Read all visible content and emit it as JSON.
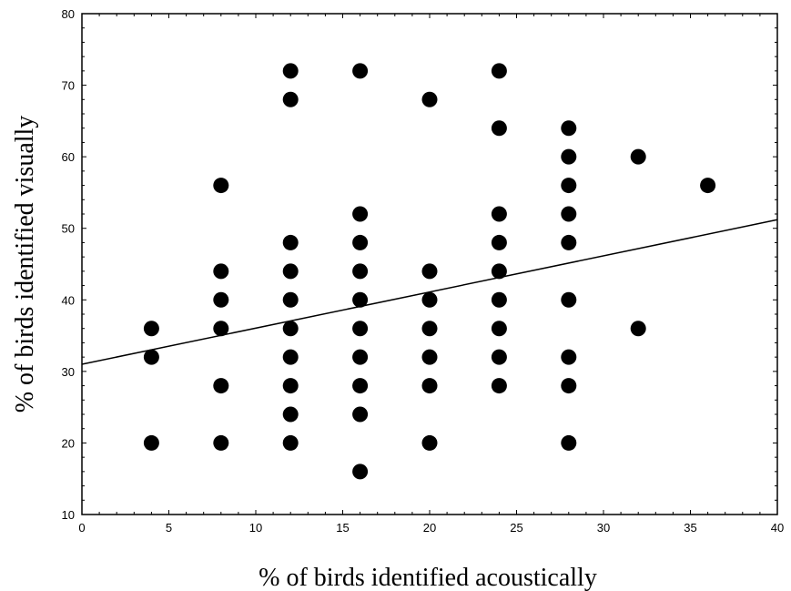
{
  "chart_data": {
    "type": "scatter",
    "xlabel": "% of birds identified acoustically",
    "ylabel": "% of birds identified  visually",
    "xlim": [
      0,
      40
    ],
    "ylim": [
      10,
      80
    ],
    "xticks": [
      0,
      5,
      10,
      15,
      20,
      25,
      30,
      35,
      40
    ],
    "yticks": [
      10,
      20,
      30,
      40,
      50,
      60,
      70,
      80
    ],
    "grid": false,
    "legend": "none",
    "marker_color": "#000000",
    "series": [
      {
        "points": [
          [
            4,
            36
          ],
          [
            4,
            32
          ],
          [
            4,
            20
          ],
          [
            8,
            56
          ],
          [
            8,
            44
          ],
          [
            8,
            40
          ],
          [
            8,
            36
          ],
          [
            8,
            28
          ],
          [
            8,
            20
          ],
          [
            12,
            72
          ],
          [
            12,
            68
          ],
          [
            12,
            48
          ],
          [
            12,
            44
          ],
          [
            12,
            40
          ],
          [
            12,
            36
          ],
          [
            12,
            32
          ],
          [
            12,
            28
          ],
          [
            12,
            24
          ],
          [
            12,
            20
          ],
          [
            16,
            72
          ],
          [
            16,
            52
          ],
          [
            16,
            48
          ],
          [
            16,
            44
          ],
          [
            16,
            40
          ],
          [
            16,
            36
          ],
          [
            16,
            32
          ],
          [
            16,
            28
          ],
          [
            16,
            24
          ],
          [
            16,
            16
          ],
          [
            20,
            68
          ],
          [
            20,
            44
          ],
          [
            20,
            40
          ],
          [
            20,
            36
          ],
          [
            20,
            32
          ],
          [
            20,
            28
          ],
          [
            20,
            20
          ],
          [
            24,
            72
          ],
          [
            24,
            64
          ],
          [
            24,
            52
          ],
          [
            24,
            48
          ],
          [
            24,
            44
          ],
          [
            24,
            40
          ],
          [
            24,
            36
          ],
          [
            24,
            32
          ],
          [
            24,
            28
          ],
          [
            28,
            64
          ],
          [
            28,
            60
          ],
          [
            28,
            56
          ],
          [
            28,
            52
          ],
          [
            28,
            48
          ],
          [
            28,
            40
          ],
          [
            28,
            32
          ],
          [
            28,
            28
          ],
          [
            28,
            20
          ],
          [
            32,
            60
          ],
          [
            32,
            36
          ],
          [
            36,
            56
          ]
        ]
      }
    ],
    "trend_line": {
      "x": [
        0,
        40
      ],
      "y": [
        31,
        51.2
      ]
    }
  }
}
